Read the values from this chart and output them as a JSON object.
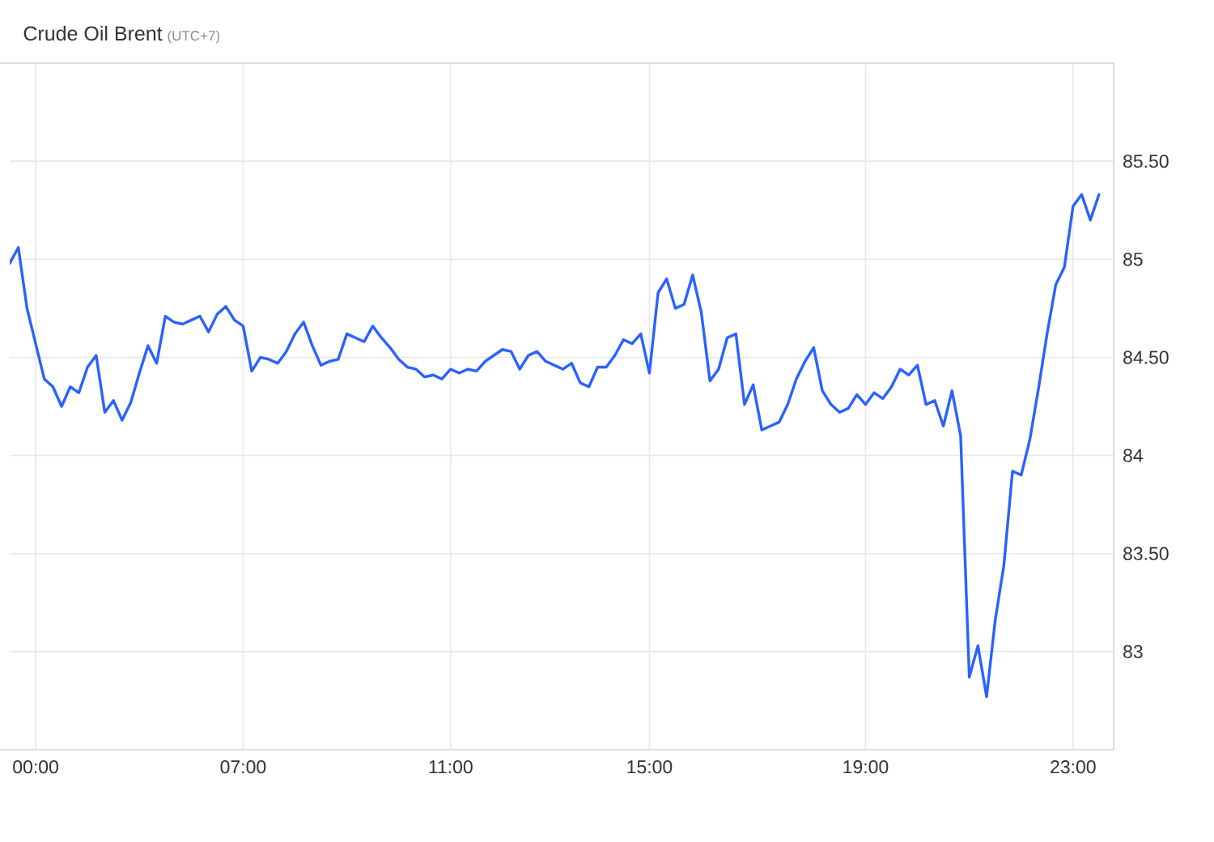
{
  "chart_data": {
    "type": "line",
    "title": "Crude Oil Brent",
    "subtitle": "(UTC+7)",
    "categories": [
      null,
      null,
      null,
      "00:00",
      null,
      null,
      null,
      null,
      null,
      null,
      null,
      null,
      null,
      null,
      null,
      null,
      null,
      null,
      null,
      null,
      null,
      null,
      null,
      null,
      null,
      null,
      null,
      "07:00",
      null,
      null,
      null,
      null,
      null,
      null,
      null,
      null,
      null,
      null,
      null,
      null,
      null,
      null,
      null,
      null,
      null,
      null,
      null,
      null,
      null,
      null,
      null,
      "11:00",
      null,
      null,
      null,
      null,
      null,
      null,
      null,
      null,
      null,
      null,
      null,
      null,
      null,
      null,
      null,
      null,
      null,
      null,
      null,
      null,
      null,
      null,
      "15:00",
      null,
      null,
      null,
      null,
      null,
      null,
      null,
      null,
      null,
      null,
      null,
      null,
      null,
      null,
      null,
      null,
      null,
      null,
      null,
      null,
      null,
      null,
      null,
      null,
      "19:00",
      null,
      null,
      null,
      null,
      null,
      null,
      null,
      null,
      null,
      null,
      null,
      null,
      null,
      null,
      null,
      null,
      null,
      null,
      null,
      null,
      null,
      null,
      null,
      "23:00",
      null,
      null,
      null
    ],
    "values": [
      84.98,
      85.06,
      84.75,
      84.57,
      84.39,
      84.35,
      84.25,
      84.35,
      84.32,
      84.45,
      84.51,
      84.22,
      84.28,
      84.18,
      84.27,
      84.42,
      84.56,
      84.47,
      84.71,
      84.68,
      84.67,
      84.69,
      84.71,
      84.63,
      84.72,
      84.76,
      84.69,
      84.66,
      84.43,
      84.5,
      84.49,
      84.47,
      84.53,
      84.62,
      84.68,
      84.56,
      84.46,
      84.48,
      84.49,
      84.62,
      84.6,
      84.58,
      84.66,
      84.6,
      84.55,
      84.49,
      84.45,
      84.44,
      84.4,
      84.41,
      84.39,
      84.44,
      84.42,
      84.44,
      84.43,
      84.48,
      84.51,
      84.54,
      84.53,
      84.44,
      84.51,
      84.53,
      84.48,
      84.46,
      84.44,
      84.47,
      84.37,
      84.35,
      84.45,
      84.45,
      84.51,
      84.59,
      84.57,
      84.62,
      84.42,
      84.83,
      84.9,
      84.75,
      84.77,
      84.92,
      84.73,
      84.38,
      84.44,
      84.6,
      84.62,
      84.26,
      84.36,
      84.13,
      84.15,
      84.17,
      84.26,
      84.39,
      84.48,
      84.55,
      84.33,
      84.26,
      84.22,
      84.24,
      84.31,
      84.26,
      84.32,
      84.29,
      84.35,
      84.44,
      84.41,
      84.46,
      84.26,
      84.28,
      84.15,
      84.33,
      84.1,
      82.87,
      83.03,
      82.77,
      83.16,
      83.44,
      83.92,
      83.9,
      84.08,
      84.34,
      84.62,
      84.87,
      84.96,
      85.27,
      85.33,
      85.2,
      85.33
    ],
    "color": "#2962ff",
    "ylim": [
      82.5,
      86
    ],
    "yticks": [
      83,
      {
        "value": 83.5,
        "label": "83.50"
      },
      84,
      {
        "value": 84.5,
        "label": "84.50"
      },
      85,
      {
        "value": 85.5,
        "label": "85.50"
      }
    ],
    "grid": true,
    "line_style": "solid"
  }
}
